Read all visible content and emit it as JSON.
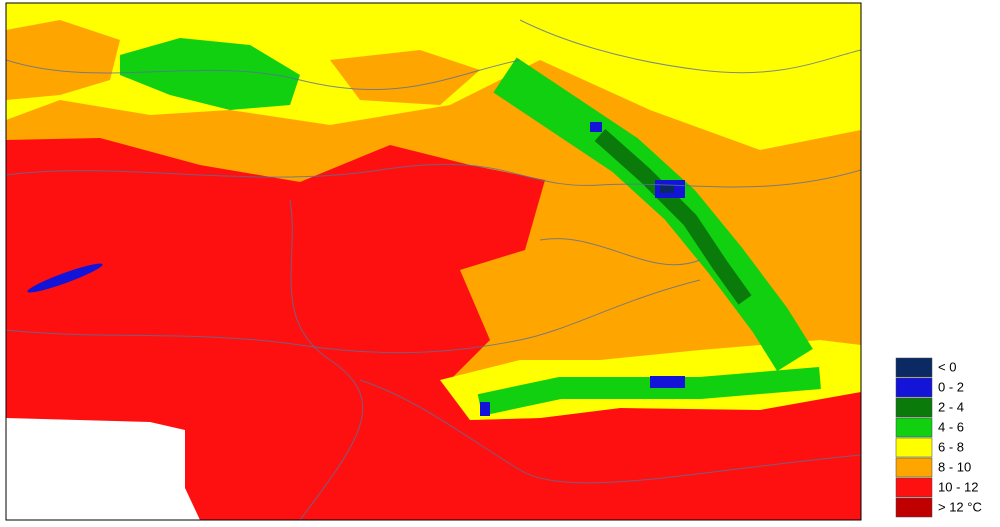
{
  "legend": {
    "items": [
      {
        "label": "< 0",
        "color": "#0b2a63"
      },
      {
        "label": "0 - 2",
        "color": "#1414d8"
      },
      {
        "label": "2 - 4",
        "color": "#0a7a0a"
      },
      {
        "label": "4 - 6",
        "color": "#10d010"
      },
      {
        "label": "6 - 8",
        "color": "#ffff00"
      },
      {
        "label": "8 - 10",
        "color": "#ffa500"
      },
      {
        "label": "10 - 12",
        "color": "#ff1010"
      },
      {
        "label": "> 12 °C",
        "color": "#c00000"
      }
    ]
  }
}
